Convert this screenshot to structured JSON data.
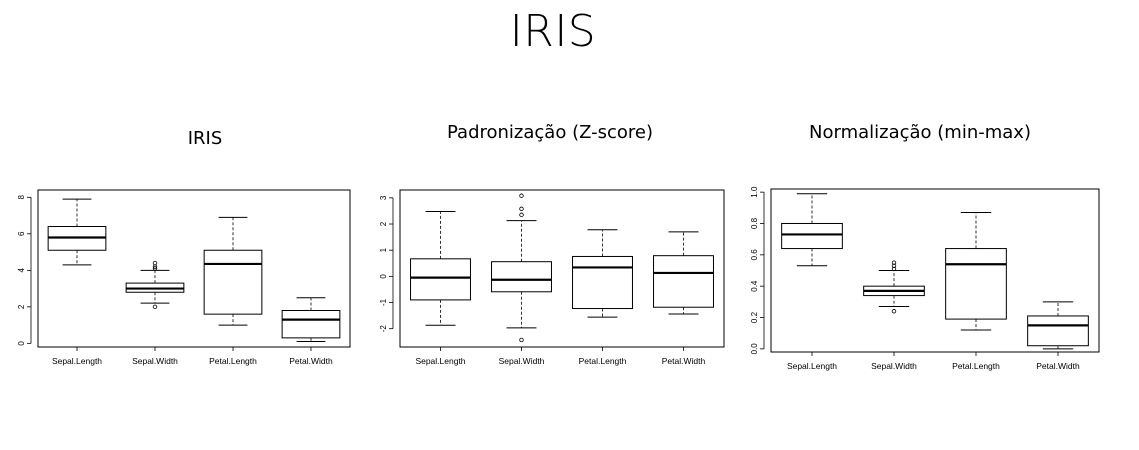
{
  "slide_title": "IRIS",
  "colors": {
    "box_fill": "#ffffff",
    "stroke": "#000000",
    "median": "#000000"
  },
  "chart_data": [
    {
      "type": "box",
      "title": "IRIS",
      "categories": [
        "Sepal.Length",
        "Sepal.Width",
        "Petal.Length",
        "Petal.Width"
      ],
      "ylim": [
        -0.2,
        8.4
      ],
      "yticks": [
        0,
        2,
        4,
        6,
        8
      ],
      "ytick_labels": [
        "0",
        "2",
        "4",
        "6",
        "8"
      ],
      "boxes": [
        {
          "min": 4.3,
          "q1": 5.1,
          "median": 5.8,
          "q3": 6.4,
          "max": 7.9,
          "outliers": []
        },
        {
          "min": 2.2,
          "q1": 2.8,
          "median": 3.0,
          "q3": 3.3,
          "max": 4.0,
          "outliers": [
            4.4,
            4.1,
            4.2,
            2.0
          ]
        },
        {
          "min": 1.0,
          "q1": 1.6,
          "median": 4.35,
          "q3": 5.1,
          "max": 6.9,
          "outliers": []
        },
        {
          "min": 0.1,
          "q1": 0.3,
          "median": 1.3,
          "q3": 1.8,
          "max": 2.5,
          "outliers": []
        }
      ]
    },
    {
      "type": "box",
      "title": "Padronização (Z-score)",
      "categories": [
        "Sepal.Length",
        "Sepal.Width",
        "Petal.Length",
        "Petal.Width"
      ],
      "ylim": [
        -2.7,
        3.3
      ],
      "yticks": [
        -2,
        -1,
        0,
        1,
        2,
        3
      ],
      "ytick_labels": [
        "-2",
        "-1",
        "0",
        "1",
        "2",
        "3"
      ],
      "boxes": [
        {
          "min": -1.87,
          "q1": -0.9,
          "median": -0.05,
          "q3": 0.67,
          "max": 2.48,
          "outliers": []
        },
        {
          "min": -1.97,
          "q1": -0.59,
          "median": -0.13,
          "q3": 0.56,
          "max": 2.13,
          "outliers": [
            3.08,
            2.58,
            2.35,
            -2.43
          ]
        },
        {
          "min": -1.56,
          "q1": -1.23,
          "median": 0.34,
          "q3": 0.76,
          "max": 1.78,
          "outliers": []
        },
        {
          "min": -1.44,
          "q1": -1.18,
          "median": 0.13,
          "q3": 0.79,
          "max": 1.7,
          "outliers": []
        }
      ]
    },
    {
      "type": "box",
      "title": "Normalização (min-max)",
      "categories": [
        "Sepal.Length",
        "Sepal.Width",
        "Petal.Length",
        "Petal.Width"
      ],
      "ylim": [
        -0.02,
        1.02
      ],
      "yticks": [
        0.0,
        0.2,
        0.4,
        0.6,
        0.8,
        1.0
      ],
      "ytick_labels": [
        "0.0",
        "0.2",
        "0.4",
        "0.6",
        "0.8",
        "1.0"
      ],
      "boxes": [
        {
          "min": 0.53,
          "q1": 0.64,
          "median": 0.73,
          "q3": 0.8,
          "max": 0.99,
          "outliers": []
        },
        {
          "min": 0.27,
          "q1": 0.34,
          "median": 0.37,
          "q3": 0.4,
          "max": 0.5,
          "outliers": [
            0.55,
            0.53,
            0.51,
            0.24
          ]
        },
        {
          "min": 0.12,
          "q1": 0.19,
          "median": 0.54,
          "q3": 0.64,
          "max": 0.87,
          "outliers": []
        },
        {
          "min": 0.0,
          "q1": 0.02,
          "median": 0.15,
          "q3": 0.21,
          "max": 0.3,
          "outliers": []
        }
      ]
    }
  ]
}
